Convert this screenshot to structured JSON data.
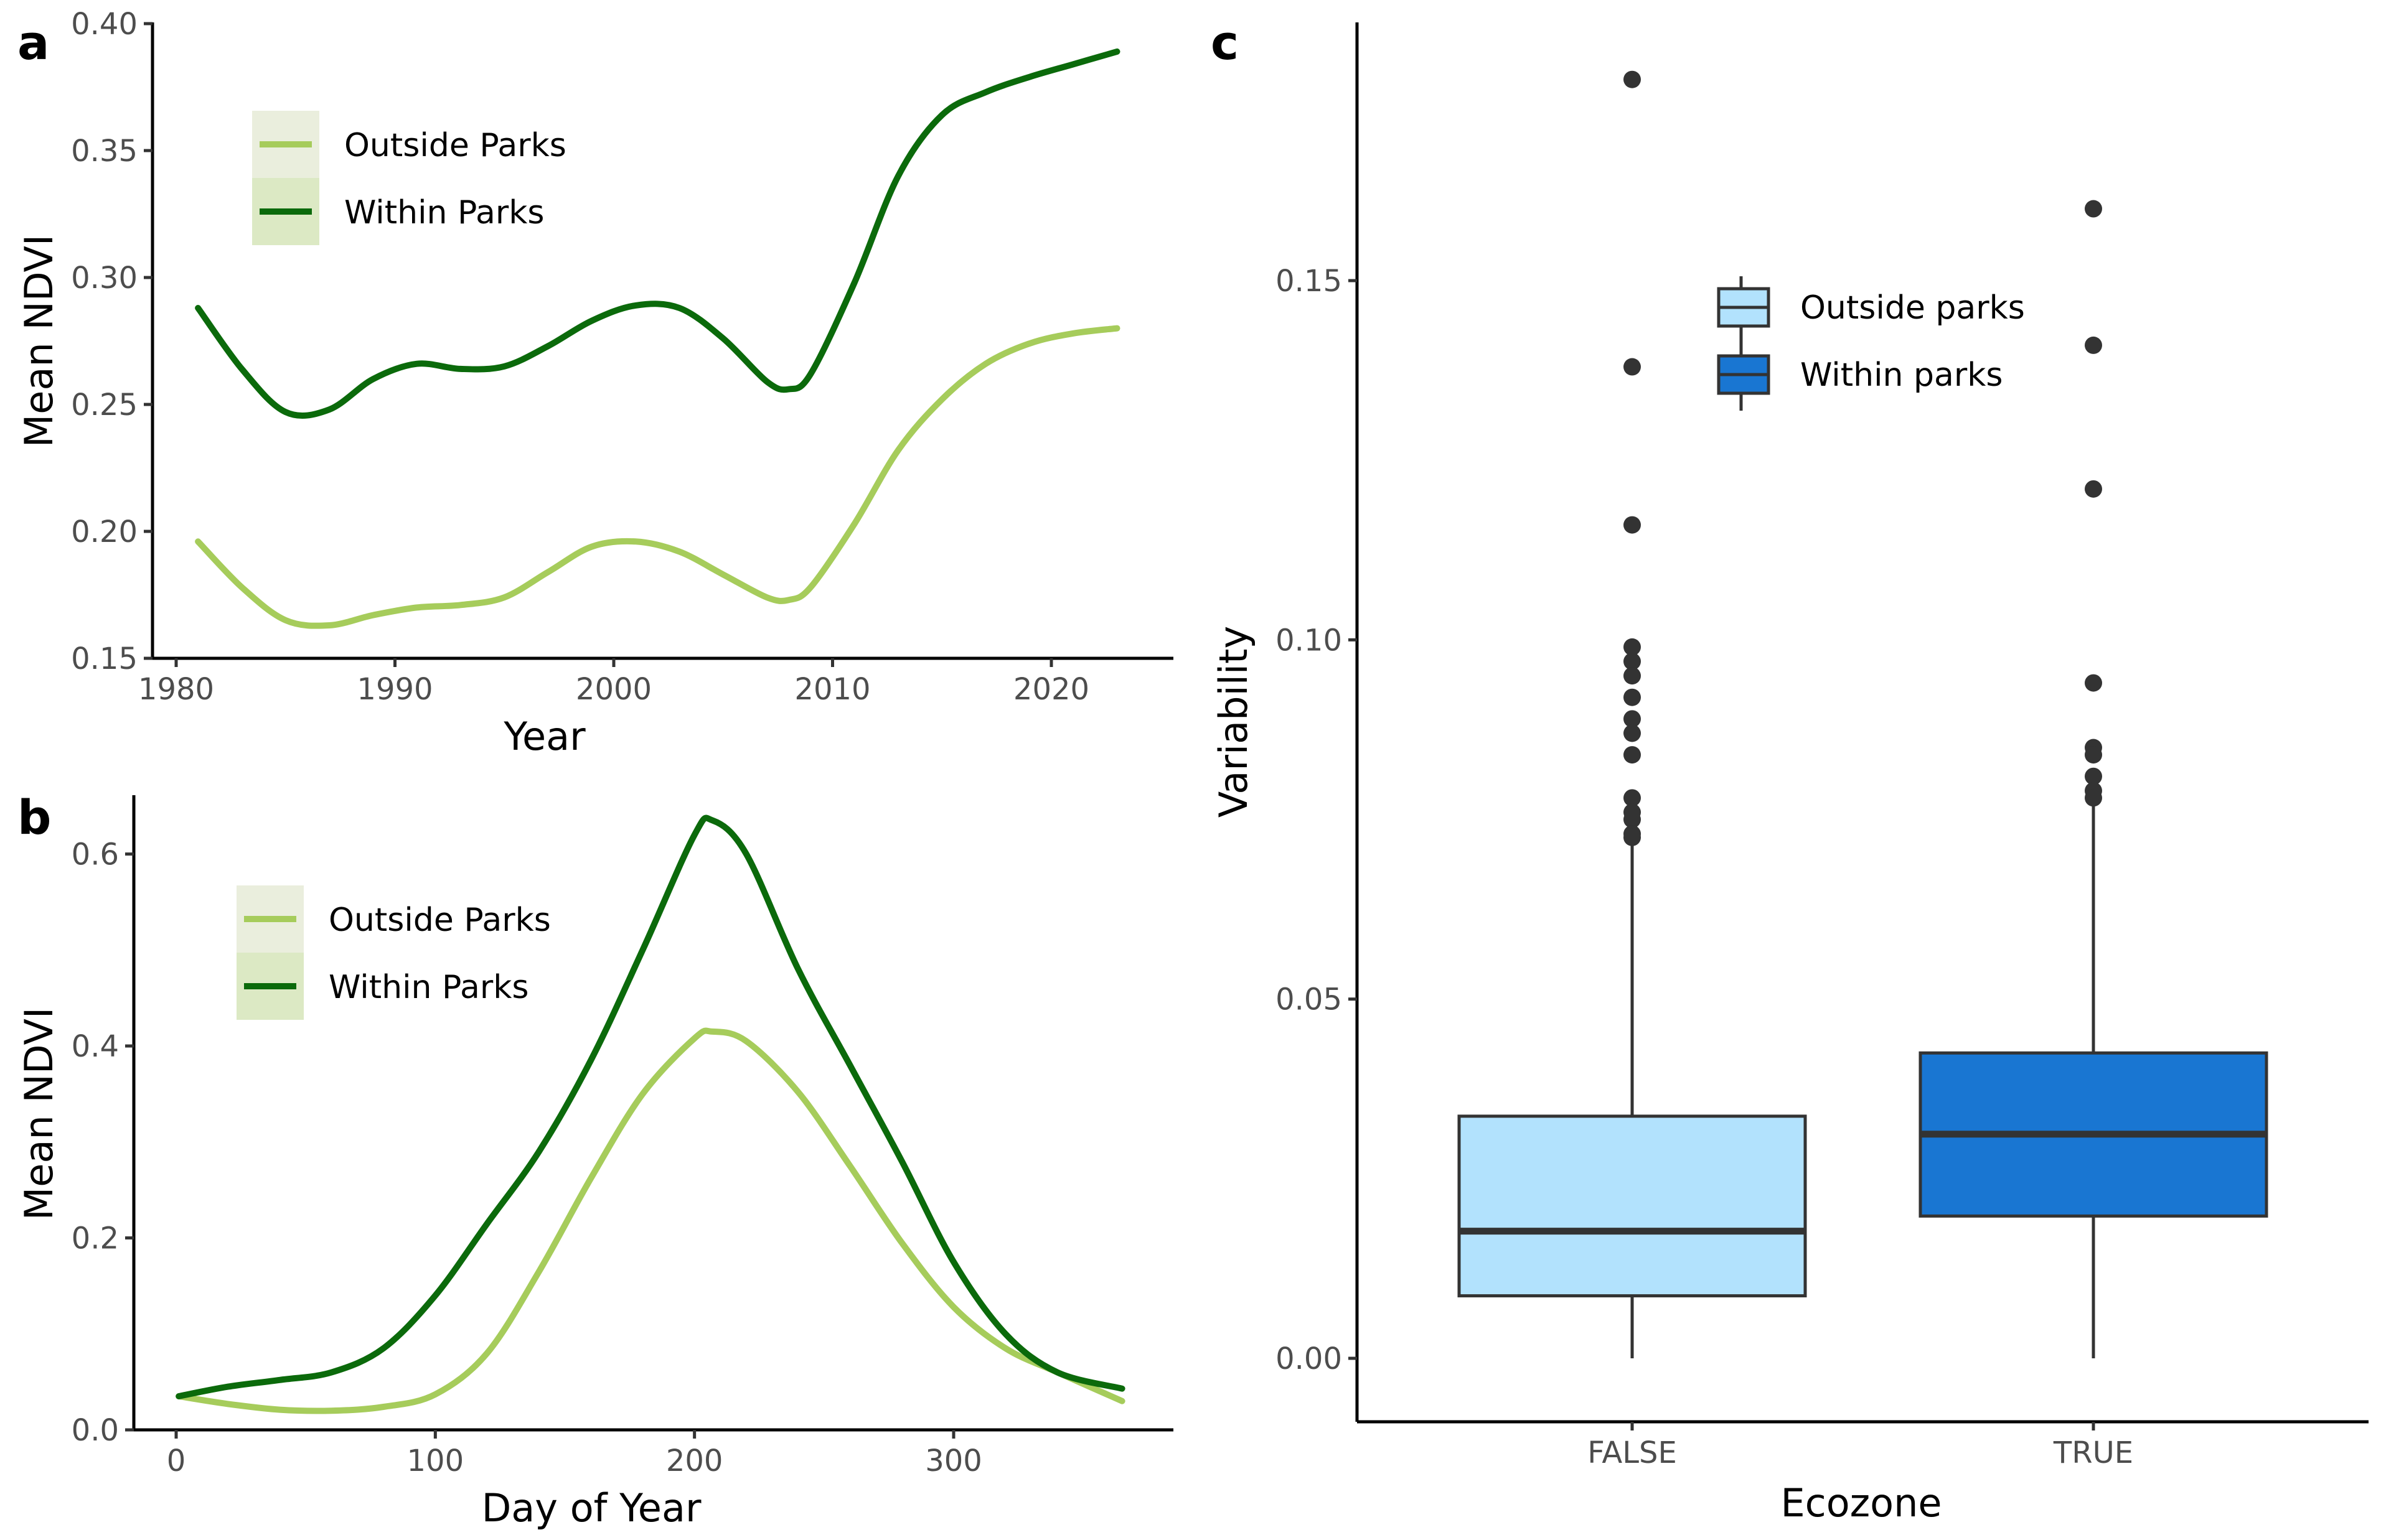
{
  "chart_data": [
    {
      "panel": "a",
      "type": "line",
      "xlabel": "Year",
      "ylabel": "Mean NDVI",
      "xlim": [
        1980,
        2023
      ],
      "ylim": [
        0.15,
        0.4
      ],
      "xticks": [
        1980,
        1990,
        2000,
        2010,
        2020
      ],
      "yticks": [
        0.15,
        0.2,
        0.25,
        0.3,
        0.35,
        0.4
      ],
      "ytick_labels": [
        "0.15",
        "0.20",
        "0.25",
        "0.30",
        "0.35",
        "0.40"
      ],
      "legend_position": "top-left",
      "series": [
        {
          "name": "Outside Parks",
          "color": "#a6cc5b",
          "x": [
            1981,
            1983,
            1985,
            1987,
            1989,
            1991,
            1993,
            1995,
            1997,
            1999,
            2001,
            2003,
            2005,
            2007,
            2008,
            2009,
            2011,
            2013,
            2015,
            2017,
            2019,
            2021,
            2023
          ],
          "y": [
            0.196,
            0.178,
            0.165,
            0.163,
            0.167,
            0.17,
            0.171,
            0.174,
            0.184,
            0.194,
            0.196,
            0.192,
            0.183,
            0.174,
            0.173,
            0.178,
            0.203,
            0.232,
            0.252,
            0.266,
            0.274,
            0.278,
            0.28
          ]
        },
        {
          "name": "Within Parks",
          "color": "#0b6a0b",
          "x": [
            1981,
            1983,
            1985,
            1987,
            1989,
            1991,
            1993,
            1995,
            1997,
            1999,
            2001,
            2003,
            2005,
            2007,
            2008,
            2009,
            2011,
            2013,
            2015,
            2017,
            2019,
            2021,
            2023
          ],
          "y": [
            0.288,
            0.264,
            0.247,
            0.248,
            0.26,
            0.266,
            0.264,
            0.265,
            0.273,
            0.283,
            0.289,
            0.288,
            0.276,
            0.259,
            0.256,
            0.262,
            0.298,
            0.34,
            0.364,
            0.373,
            0.379,
            0.384,
            0.389
          ]
        }
      ]
    },
    {
      "panel": "b",
      "type": "line",
      "xlabel": "Day of Year",
      "ylabel": "Mean NDVI",
      "xlim": [
        0,
        366
      ],
      "ylim": [
        0.0,
        0.66
      ],
      "xticks": [
        0,
        100,
        200,
        300
      ],
      "yticks": [
        0.0,
        0.2,
        0.4,
        0.6
      ],
      "ytick_labels": [
        "0.0",
        "0.2",
        "0.4",
        "0.6"
      ],
      "legend_position": "top-left",
      "series": [
        {
          "name": "Outside Parks",
          "color": "#a6cc5b",
          "x": [
            1,
            20,
            40,
            60,
            80,
            100,
            120,
            140,
            160,
            180,
            200,
            207,
            220,
            240,
            260,
            280,
            300,
            320,
            340,
            365
          ],
          "y": [
            0.035,
            0.027,
            0.021,
            0.02,
            0.024,
            0.037,
            0.08,
            0.165,
            0.262,
            0.35,
            0.408,
            0.415,
            0.405,
            0.352,
            0.275,
            0.195,
            0.128,
            0.085,
            0.06,
            0.03
          ]
        },
        {
          "name": "Within Parks",
          "color": "#0b6a0b",
          "x": [
            1,
            20,
            40,
            60,
            80,
            100,
            120,
            140,
            160,
            180,
            200,
            207,
            220,
            240,
            260,
            280,
            300,
            320,
            340,
            365
          ],
          "y": [
            0.035,
            0.045,
            0.052,
            0.06,
            0.085,
            0.14,
            0.215,
            0.29,
            0.385,
            0.5,
            0.62,
            0.635,
            0.6,
            0.48,
            0.38,
            0.28,
            0.175,
            0.1,
            0.06,
            0.043
          ]
        }
      ]
    },
    {
      "panel": "c",
      "type": "box",
      "xlabel": "Ecozone",
      "ylabel": "Variability",
      "ylim": [
        -0.0085,
        0.186
      ],
      "yticks": [
        0.0,
        0.05,
        0.1,
        0.15
      ],
      "ytick_labels": [
        "0.00",
        "0.05",
        "0.10",
        "0.15"
      ],
      "legend_position": "top-center",
      "categories": [
        "FALSE",
        "TRUE"
      ],
      "series": [
        {
          "name": "Outside parks",
          "color": "#b2e2fd",
          "category": "FALSE",
          "min": 0.0,
          "q1": 0.0087,
          "median": 0.0177,
          "q3": 0.0337,
          "max": 0.0723,
          "outliers": [
            0.178,
            0.138,
            0.116,
            0.099,
            0.097,
            0.095,
            0.092,
            0.089,
            0.087,
            0.084,
            0.078,
            0.076,
            0.075,
            0.073,
            0.0725
          ]
        },
        {
          "name": "Within parks",
          "color": "#1976d2",
          "category": "TRUE",
          "min": 0.0,
          "q1": 0.0198,
          "median": 0.0312,
          "q3": 0.0425,
          "max": 0.0775,
          "outliers": [
            0.16,
            0.141,
            0.121,
            0.094,
            0.085,
            0.084,
            0.081,
            0.079,
            0.078
          ]
        }
      ]
    }
  ]
}
